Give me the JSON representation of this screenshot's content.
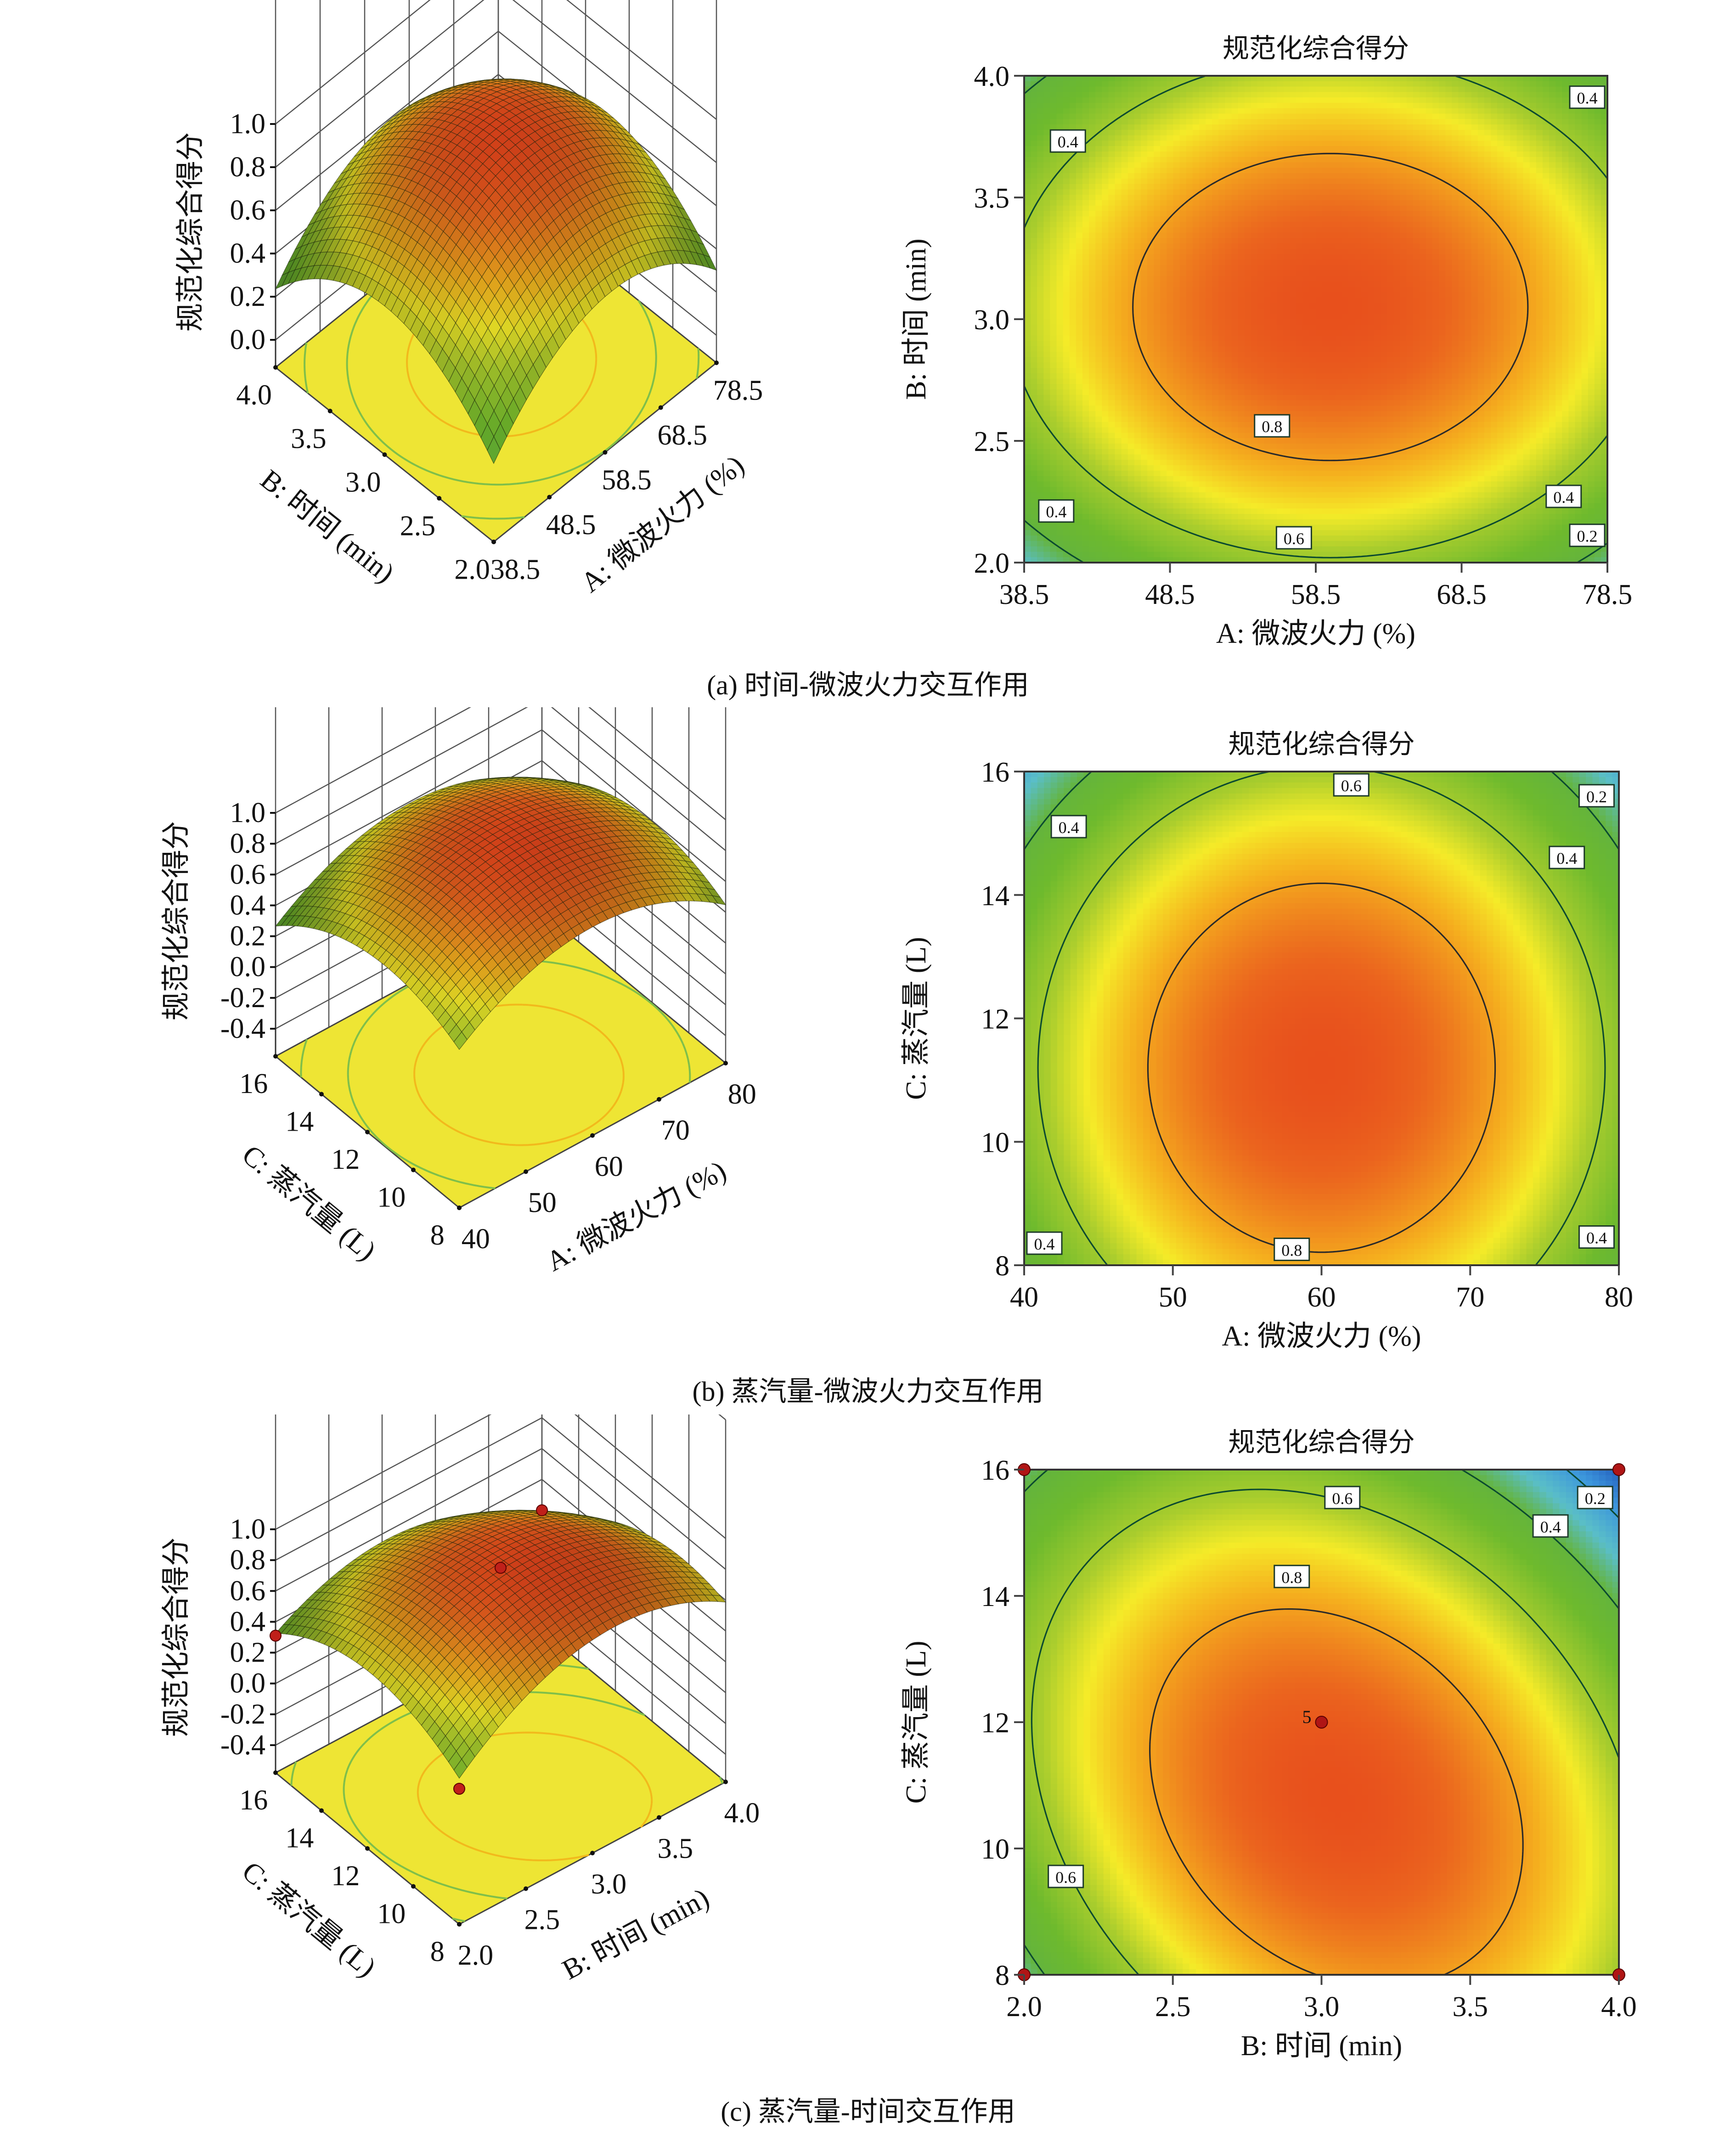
{
  "figure": {
    "captions": {
      "a": "(a) 时间-微波火力交互作用",
      "b": "(b) 蒸汽量-微波火力交互作用",
      "c": "(c) 蒸汽量-时间交互作用"
    }
  },
  "chart_data": [
    {
      "id": "a-surface",
      "type": "surface3d",
      "zlabel": "规范化综合得分",
      "xlabel": "A: 微波火力 (%)",
      "ylabel": "B: 时间 (min)",
      "x_ticks": [
        "38.5",
        "48.5",
        "58.5",
        "68.5",
        "78.5"
      ],
      "y_ticks": [
        "2.0",
        "2.5",
        "3.0",
        "3.5",
        "4.0"
      ],
      "z_ticks": [
        "0.0",
        "0.2",
        "0.4",
        "0.6",
        "0.8",
        "1.0"
      ],
      "xlim": [
        38.5,
        78.5
      ],
      "ylim": [
        2.0,
        4.0
      ],
      "zlim": [
        0.0,
        1.0
      ],
      "peak": {
        "x": 59.5,
        "y": 3.0,
        "z": 0.92
      },
      "corner_value": 0.2
    },
    {
      "id": "a-contour",
      "type": "contour",
      "title": "规范化综合得分",
      "xlabel": "A: 微波火力 (%)",
      "ylabel": "B: 时间 (min)",
      "x_ticks": [
        "38.5",
        "48.5",
        "58.5",
        "68.5",
        "78.5"
      ],
      "y_ticks": [
        "2.0",
        "2.5",
        "3.0",
        "3.5",
        "4.0"
      ],
      "xlim": [
        38.5,
        78.5
      ],
      "ylim": [
        2.0,
        4.0
      ],
      "center": {
        "x": 59.5,
        "y": 3.05
      },
      "levels": [
        0.2,
        0.4,
        0.6,
        0.8
      ],
      "contour_labels": [
        {
          "text": "0.4",
          "x": 41.5,
          "y": 3.73
        },
        {
          "text": "0.4",
          "x": 77.5,
          "y": 3.91
        },
        {
          "text": "0.8",
          "x": 55.5,
          "y": 2.56
        },
        {
          "text": "0.4",
          "x": 40.7,
          "y": 2.21
        },
        {
          "text": "0.4",
          "x": 75.5,
          "y": 2.27
        },
        {
          "text": "0.6",
          "x": 57.0,
          "y": 2.1
        },
        {
          "text": "0.2",
          "x": 77.5,
          "y": 2.11
        }
      ]
    },
    {
      "id": "b-surface",
      "type": "surface3d",
      "zlabel": "规范化综合得分",
      "xlabel": "A: 微波火力 (%)",
      "ylabel": "C: 蒸汽量 (L)",
      "x_ticks": [
        "40",
        "50",
        "60",
        "70",
        "80"
      ],
      "y_ticks": [
        "8",
        "10",
        "12",
        "14",
        "16"
      ],
      "z_ticks": [
        "-0.4",
        "-0.2",
        "0.0",
        "0.2",
        "0.4",
        "0.6",
        "0.8",
        "1.0"
      ],
      "xlim": [
        40,
        80
      ],
      "ylim": [
        8,
        16
      ],
      "zlim": [
        -0.4,
        1.0
      ],
      "peak": {
        "x": 60,
        "y": 11.2,
        "z": 0.93
      },
      "corner_value": 0.15
    },
    {
      "id": "b-contour",
      "type": "contour",
      "title": "规范化综合得分",
      "xlabel": "A: 微波火力 (%)",
      "ylabel": "C: 蒸汽量 (L)",
      "x_ticks": [
        "40",
        "50",
        "60",
        "70",
        "80"
      ],
      "y_ticks": [
        "8",
        "10",
        "12",
        "14",
        "16"
      ],
      "xlim": [
        40,
        80
      ],
      "ylim": [
        8,
        16
      ],
      "center": {
        "x": 60,
        "y": 11.2
      },
      "levels": [
        0.2,
        0.4,
        0.6,
        0.8
      ],
      "contour_labels": [
        {
          "text": "0.6",
          "x": 62.0,
          "y": 15.8
        },
        {
          "text": "0.2",
          "x": 78.5,
          "y": 15.6
        },
        {
          "text": "0.4",
          "x": 43.0,
          "y": 15.1
        },
        {
          "text": "0.4",
          "x": 76.5,
          "y": 14.6
        },
        {
          "text": "0.4",
          "x": 41.2,
          "y": 8.35
        },
        {
          "text": "0.8",
          "x": 58.0,
          "y": 8.25
        },
        {
          "text": "0.4",
          "x": 78.5,
          "y": 8.45
        }
      ]
    },
    {
      "id": "c-surface",
      "type": "surface3d",
      "zlabel": "规范化综合得分",
      "xlabel": "B: 时间 (min)",
      "ylabel": "C: 蒸汽量 (L)",
      "x_ticks": [
        "2.0",
        "2.5",
        "3.0",
        "3.5",
        "4.0"
      ],
      "y_ticks": [
        "8",
        "10",
        "12",
        "14",
        "16"
      ],
      "z_ticks": [
        "-0.4",
        "-0.2",
        "0.0",
        "0.2",
        "0.4",
        "0.6",
        "0.8",
        "1.0"
      ],
      "xlim": [
        2.0,
        4.0
      ],
      "ylim": [
        8,
        16
      ],
      "zlim": [
        -0.4,
        1.0
      ],
      "peak": {
        "x": 3.05,
        "y": 10.8,
        "z": 0.9
      },
      "corner_value": 0.3,
      "design_points": [
        {
          "x": 3.0,
          "y": 12,
          "z": 0.78
        },
        {
          "x": 2.0,
          "y": 16,
          "z": 0.31
        },
        {
          "x": 4.0,
          "y": 16,
          "z": 0.2
        },
        {
          "x": 2.0,
          "y": 8,
          "z": 0.3
        }
      ]
    },
    {
      "id": "c-contour",
      "type": "contour",
      "title": "规范化综合得分",
      "xlabel": "B: 时间 (min)",
      "ylabel": "C: 蒸汽量 (L)",
      "x_ticks": [
        "2.0",
        "2.5",
        "3.0",
        "3.5",
        "4.0"
      ],
      "y_ticks": [
        "8",
        "10",
        "12",
        "14",
        "16"
      ],
      "xlim": [
        2.0,
        4.0
      ],
      "ylim": [
        8,
        16
      ],
      "center": {
        "x": 3.05,
        "y": 10.8
      },
      "levels": [
        0.2,
        0.4,
        0.6,
        0.8
      ],
      "contour_labels": [
        {
          "text": "0.6",
          "x": 3.07,
          "y": 15.55
        },
        {
          "text": "0.2",
          "x": 3.92,
          "y": 15.55
        },
        {
          "text": "0.4",
          "x": 3.77,
          "y": 15.1
        },
        {
          "text": "0.8",
          "x": 2.9,
          "y": 14.3
        },
        {
          "text": "0.6",
          "x": 2.14,
          "y": 9.55
        }
      ],
      "design_points": [
        {
          "x": 2.0,
          "y": 16
        },
        {
          "x": 4.0,
          "y": 16
        },
        {
          "x": 2.0,
          "y": 8
        },
        {
          "x": 4.0,
          "y": 8
        },
        {
          "x": 3.0,
          "y": 12,
          "label": "5"
        }
      ]
    }
  ]
}
